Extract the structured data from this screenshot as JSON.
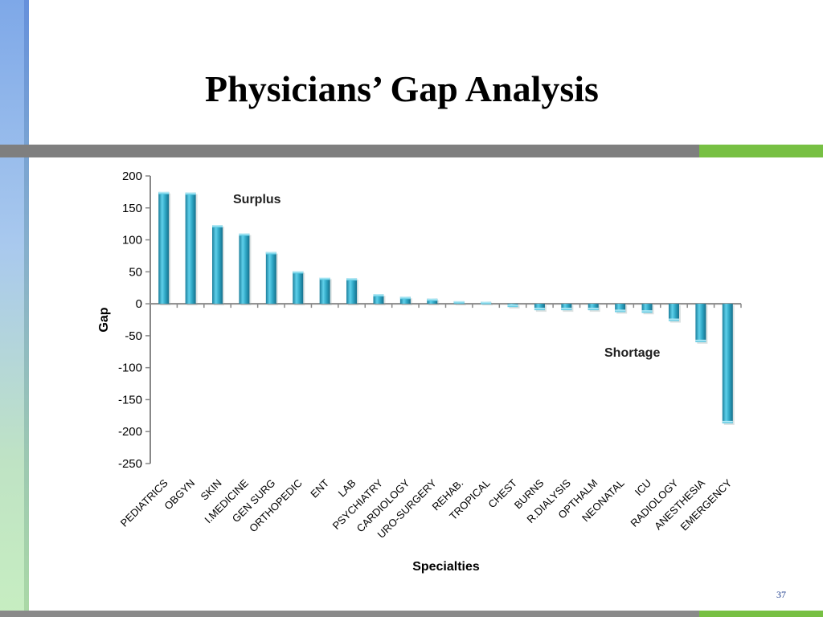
{
  "slide": {
    "title": "Physicians’ Gap Analysis",
    "page_number": "37",
    "colors": {
      "band_gray": "#7f7f7f",
      "band_green": "#77c043",
      "bar": "#2ea6c4"
    }
  },
  "chart_data": {
    "type": "bar",
    "title": "",
    "xlabel": "Specialties",
    "ylabel": "Gap",
    "ylim": [
      -250,
      200
    ],
    "yticks": [
      200,
      150,
      100,
      50,
      0,
      -50,
      -100,
      -150,
      -200,
      -250
    ],
    "grid": false,
    "legend": "none",
    "annotations": [
      "Surplus",
      "Shortage"
    ],
    "categories": [
      "PEDIATRICS",
      "OBGYN",
      "SKIN",
      "I.MEDICINE",
      "GEN SURG",
      "ORTHOPEDIC",
      "ENT",
      "LAB",
      "PSYCHIATRY",
      "CARDIOLOGY",
      "URO-SURGERY",
      "REHAB.",
      "TROPICAL",
      "CHEST",
      "BURNS",
      "R.DIALYSIS",
      "OPTHALM",
      "NEONATAL",
      "ICU",
      "RADIOLOGY",
      "ANESTHESIA",
      "EMERGENCY"
    ],
    "values": [
      175,
      174,
      123,
      110,
      81,
      51,
      41,
      40,
      15,
      11,
      8,
      4,
      3,
      -5,
      -10,
      -10,
      -10,
      -13,
      -14,
      -27,
      -60,
      -187
    ]
  }
}
